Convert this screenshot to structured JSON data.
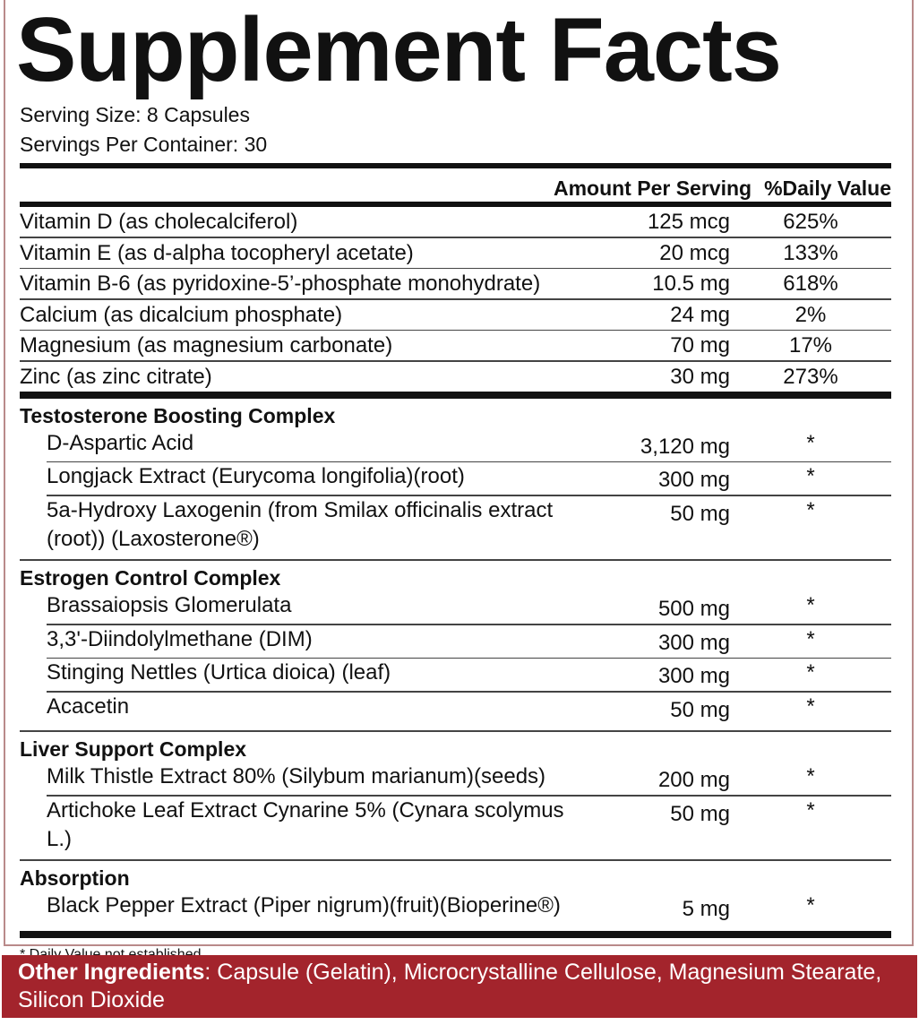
{
  "title": "Supplement Facts",
  "serving_size": "Serving Size: 8 Capsules",
  "servings_per_container": "Servings Per Container: 30",
  "header": {
    "amount": "Amount Per Serving",
    "dv": "%Daily Value"
  },
  "vitamins": [
    {
      "name": "Vitamin D (as cholecalciferol)",
      "amount": "125 mcg",
      "dv": "625%"
    },
    {
      "name": "Vitamin E (as d-alpha tocopheryl acetate)",
      "amount": "20 mcg",
      "dv": "133%"
    },
    {
      "name": "Vitamin B-6 (as pyridoxine-5’-phosphate monohydrate)",
      "amount": "10.5 mg",
      "dv": "618%"
    },
    {
      "name": "Calcium (as dicalcium phosphate)",
      "amount": "24 mg",
      "dv": "2%"
    },
    {
      "name": "Magnesium (as magnesium carbonate)",
      "amount": "70 mg",
      "dv": "17%"
    },
    {
      "name": "Zinc (as zinc citrate)",
      "amount": "30 mg",
      "dv": "273%"
    }
  ],
  "sections": [
    {
      "title": "Testosterone Boosting Complex",
      "items": [
        {
          "name": "D-Aspartic Acid",
          "amount": "3,120 mg",
          "dv": "*"
        },
        {
          "name": "Longjack Extract (Eurycoma longifolia)(root)",
          "amount": "300 mg",
          "dv": "*"
        },
        {
          "name": "5a-Hydroxy Laxogenin (from Smilax officinalis extract (root)) (Laxosterone®)",
          "amount": "50 mg",
          "dv": "*"
        }
      ]
    },
    {
      "title": "Estrogen Control Complex",
      "items": [
        {
          "name": "Brassaiopsis Glomerulata",
          "amount": "500 mg",
          "dv": "*"
        },
        {
          "name": "3,3'-Diindolylmethane (DIM)",
          "amount": "300 mg",
          "dv": "*"
        },
        {
          "name": "Stinging Nettles (Urtica dioica) (leaf)",
          "amount": "300 mg",
          "dv": "*"
        },
        {
          "name": "Acacetin",
          "amount": "50 mg",
          "dv": "*"
        }
      ]
    },
    {
      "title": "Liver Support Complex",
      "items": [
        {
          "name": "Milk Thistle Extract 80% (Silybum marianum)(seeds)",
          "amount": "200 mg",
          "dv": "*"
        },
        {
          "name": "Artichoke Leaf Extract Cynarine 5% (Cynara scolymus L.)",
          "amount": "50 mg",
          "dv": "*"
        }
      ]
    },
    {
      "title": "Absorption",
      "items": [
        {
          "name": "Black Pepper Extract (Piper nigrum)(fruit)(Bioperine®)",
          "amount": "5 mg",
          "dv": "*"
        }
      ]
    }
  ],
  "footnote": "* Daily Value not established",
  "other_ingredients": {
    "label": "Other Ingredients",
    "text": ": Capsule (Gelatin), Microcrystalline Cellulose, Magnesium Stearate, Silicon Dioxide"
  },
  "colors": {
    "accent_red": "#a3242c",
    "text": "#111111"
  }
}
